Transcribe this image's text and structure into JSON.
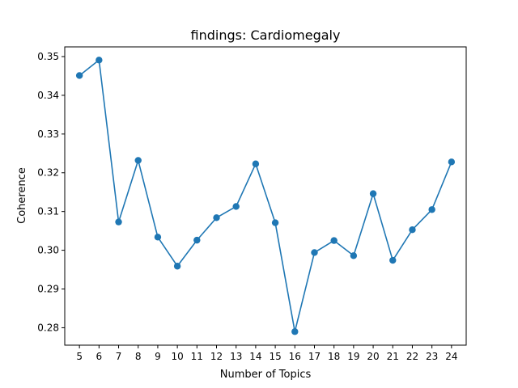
{
  "chart_data": {
    "type": "line",
    "title": "findings: Cardiomegaly",
    "xlabel": "Number of Topics",
    "ylabel": "Coherence",
    "x": [
      5,
      6,
      7,
      8,
      9,
      10,
      11,
      12,
      13,
      14,
      15,
      16,
      17,
      18,
      19,
      20,
      21,
      22,
      23,
      24
    ],
    "series": [
      {
        "values": [
          0.3451,
          0.3491,
          0.3073,
          0.3232,
          0.3034,
          0.2959,
          0.3026,
          0.3084,
          0.3113,
          0.3223,
          0.3071,
          0.279,
          0.2994,
          0.3025,
          0.2986,
          0.3146,
          0.2974,
          0.3053,
          0.3105,
          0.3228
        ],
        "color": "#1f77b4"
      }
    ],
    "xlim": [
      4.25,
      24.75
    ],
    "ylim": [
      0.2755,
      0.3525
    ],
    "yticks": [
      0.28,
      0.29,
      0.3,
      0.31,
      0.32,
      0.33,
      0.34,
      0.35
    ],
    "ytick_labels": [
      "0.28",
      "0.29",
      "0.30",
      "0.31",
      "0.32",
      "0.33",
      "0.34",
      "0.35"
    ],
    "grid": false,
    "legend": false
  }
}
